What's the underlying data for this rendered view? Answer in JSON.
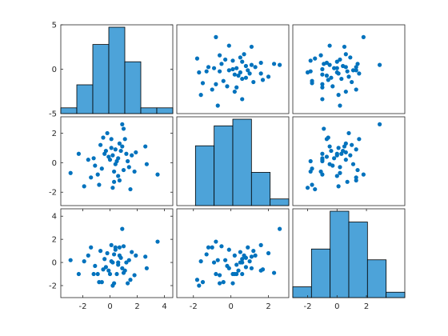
{
  "chart_data": {
    "type": "scatter-matrix",
    "variables": 3,
    "colors": {
      "marker": "#0072BD",
      "bar": "#4DA3D9",
      "bar_edge": "#000000",
      "axes": "#262626"
    },
    "grid": false,
    "legend": "none",
    "title": "",
    "var_ranges": [
      [
        -3.5,
        4.5
      ],
      [
        -2.8,
        3.0
      ],
      [
        -2.9,
        4.5
      ]
    ],
    "tick_labels": {
      "rows": [
        [
          "-5",
          "0",
          "5"
        ],
        [
          "-2",
          "0",
          "2"
        ],
        [
          "-2",
          "0",
          "2",
          "4"
        ]
      ],
      "cols": [
        [
          "-2",
          "0",
          "2",
          "4"
        ],
        [
          "-2",
          "0",
          "2"
        ],
        [
          "-2",
          "0",
          "2"
        ]
      ]
    },
    "row_ticks": [
      [
        -5,
        0,
        5
      ],
      [
        -2,
        0,
        2
      ],
      [
        -2,
        0,
        2,
        4
      ]
    ],
    "col_ticks": [
      [
        -2,
        0,
        2,
        4
      ],
      [
        -2,
        0,
        2
      ],
      [
        -2,
        0,
        2
      ]
    ],
    "hist_ylim": [
      [
        -5,
        5
      ],
      null,
      null
    ],
    "histograms": [
      {
        "var": 1,
        "edges": [
          -3,
          -2,
          -1,
          0,
          1,
          2,
          3,
          4
        ],
        "counts": [
          1,
          5,
          12,
          15,
          9,
          1,
          1
        ]
      },
      {
        "var": 2,
        "edges": [
          -3,
          -2,
          -1,
          0,
          1,
          2,
          3
        ],
        "counts": [
          0,
          9,
          12,
          13,
          5,
          1
        ]
      },
      {
        "var": 3,
        "edges": [
          -3,
          -2,
          -1,
          0,
          1,
          2,
          3
        ],
        "counts": [
          2,
          9,
          16,
          14,
          7,
          1
        ]
      }
    ],
    "points": {
      "v1": [
        -2.9,
        -2.3,
        -1.9,
        -1.4,
        -1.6,
        -0.5,
        -0.7,
        -0.2,
        -1.2,
        -1.1,
        -0.4,
        -0.9,
        0.1,
        -0.6,
        0.4,
        0.2,
        -0.1,
        0.3,
        0.9,
        0.7,
        0.5,
        1.0,
        0.8,
        1.1,
        1.3,
        1.5,
        0.6,
        0.2,
        0.0,
        1.6,
        1.8,
        0.7,
        0.9,
        1.2,
        0.4,
        -0.3,
        2.6,
        2.7,
        3.5,
        1.4,
        0.6,
        -0.8,
        0.1,
        0.3,
        1.0,
        1.9
      ],
      "v2": [
        -0.7,
        0.6,
        -1.6,
        -1.0,
        0.2,
        1.7,
        1.2,
        2.0,
        0.3,
        -0.2,
        0.6,
        -0.8,
        1.0,
        -0.4,
        0.9,
        0.5,
        0.4,
        -1.3,
        2.6,
        1.3,
        0.1,
        -0.5,
        0.8,
        1.6,
        0.1,
        -1.8,
        -0.9,
        -1.7,
        0.2,
        0.5,
        -0.6,
        -1.2,
        1.1,
        0.6,
        -0.1,
        0.8,
        1.1,
        -0.1,
        -0.8,
        -0.3,
        0.3,
        -1.5,
        1.6,
        -0.6,
        2.3,
        0.7
      ],
      "v3": [
        0.2,
        -1.0,
        0.1,
        1.3,
        0.6,
        -0.6,
        1.0,
        0.8,
        -1.0,
        -0.3,
        0.3,
        -1.0,
        0.1,
        -1.7,
        1.3,
        0.0,
        -0.7,
        0.7,
        2.9,
        0.6,
        -1.0,
        1.4,
        0.4,
        -0.7,
        -1.8,
        -1.5,
        0.0,
        -2.0,
        -1.0,
        0.9,
        -1.1,
        1.3,
        -0.5,
        0.0,
        1.1,
        -0.4,
        0.5,
        -0.5,
        1.8,
        0.2,
        -0.2,
        -1.7,
        1.5,
        -1.8,
        -0.9,
        0.6
      ]
    }
  }
}
